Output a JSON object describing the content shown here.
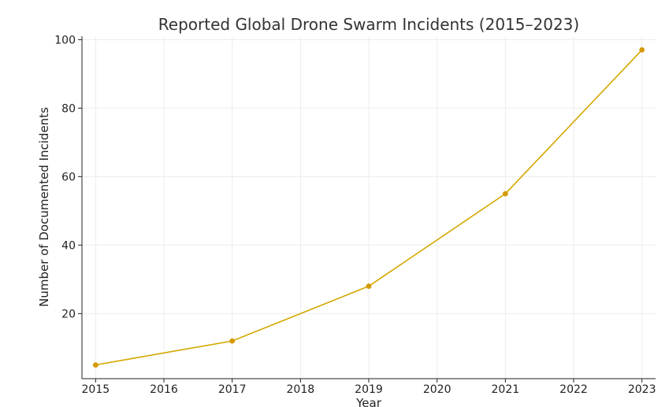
{
  "chart_data": {
    "type": "line",
    "title": "Reported Global Drone Swarm Incidents (2015–2023)",
    "xlabel": "Year",
    "ylabel": "Number of Documented Incidents",
    "x_ticks": [
      "2015",
      "2016",
      "2017",
      "2018",
      "2019",
      "2020",
      "2021",
      "2022",
      "2023"
    ],
    "y_ticks": [
      "20",
      "40",
      "60",
      "80",
      "100"
    ],
    "xlim": [
      2014.8,
      2023.2
    ],
    "ylim": [
      1,
      101
    ],
    "grid": true,
    "series": [
      {
        "x": [
          2015,
          2017,
          2019,
          2021,
          2023
        ],
        "y": [
          5,
          12,
          28,
          55,
          97
        ],
        "color": "#d4a800",
        "marker_color": "#d49a00"
      }
    ]
  }
}
